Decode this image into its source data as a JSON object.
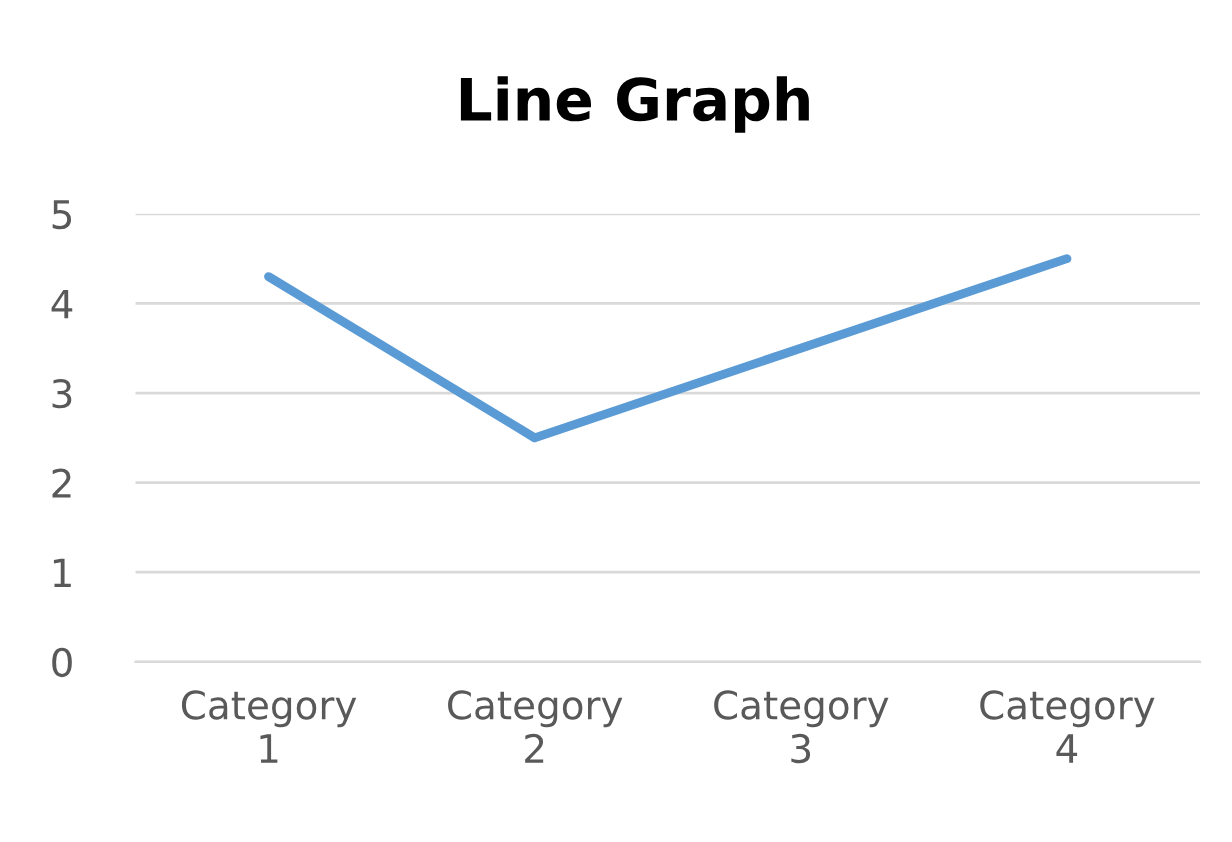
{
  "chart_data": {
    "type": "line",
    "title": "Line Graph",
    "categories": [
      "Category 1",
      "Category 2",
      "Category 3",
      "Category 4"
    ],
    "series": [
      {
        "color": "#5b9bd5",
        "values": [
          4.3,
          2.5,
          3.5,
          4.5
        ]
      }
    ],
    "ylim": [
      0,
      5
    ],
    "yticks": [
      0,
      1,
      2,
      3,
      4,
      5
    ],
    "grid": "y",
    "legend": false,
    "marker": "none",
    "line_style": "solid"
  }
}
